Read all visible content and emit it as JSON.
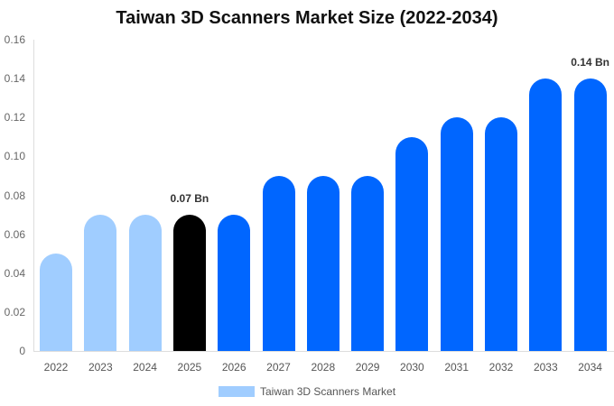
{
  "chart_data": {
    "type": "bar",
    "title": "Taiwan 3D Scanners Market Size (2022-2034)",
    "xlabel": "",
    "ylabel": "",
    "ylim": [
      0,
      0.16
    ],
    "yticks": [
      "0",
      "0.02",
      "0.04",
      "0.06",
      "0.08",
      "0.10",
      "0.12",
      "0.14",
      "0.16"
    ],
    "grid": false,
    "legend_position": "bottom",
    "categories": [
      "2022",
      "2023",
      "2024",
      "2025",
      "2026",
      "2027",
      "2028",
      "2029",
      "2030",
      "2031",
      "2032",
      "2033",
      "2034"
    ],
    "series": [
      {
        "name": "Taiwan 3D Scanners Market",
        "values": [
          0.05,
          0.07,
          0.07,
          0.07,
          0.07,
          0.09,
          0.09,
          0.09,
          0.11,
          0.12,
          0.12,
          0.14,
          0.14
        ]
      }
    ],
    "bar_colors": [
      "#a0cdff",
      "#a0cdff",
      "#a0cdff",
      "#000000",
      "#0066ff",
      "#0066ff",
      "#0066ff",
      "#0066ff",
      "#0066ff",
      "#0066ff",
      "#0066ff",
      "#0066ff",
      "#0066ff"
    ],
    "annotations": [
      {
        "category": "2025",
        "text": "0.07 Bn"
      },
      {
        "category": "2034",
        "text": "0.14 Bn"
      }
    ]
  },
  "legend": {
    "label": "Taiwan 3D Scanners Market",
    "color": "#a0cdff"
  }
}
